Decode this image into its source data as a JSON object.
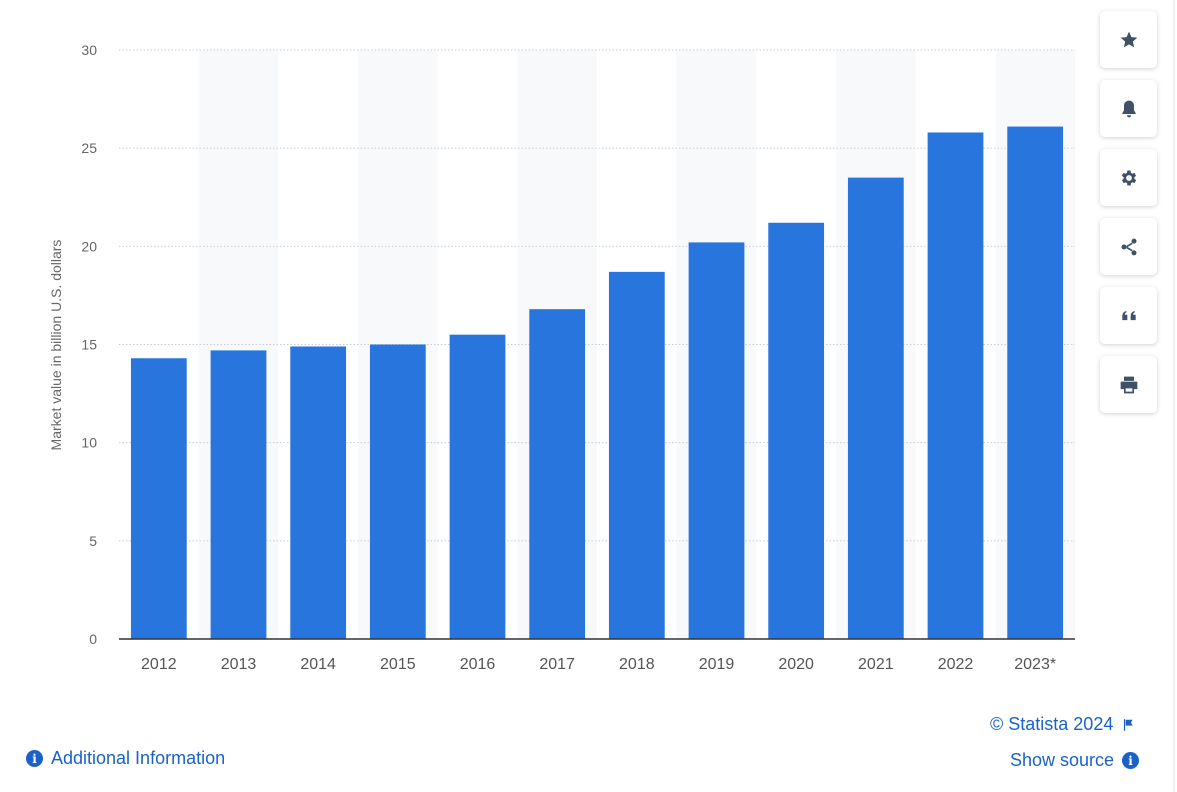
{
  "chart_data": {
    "type": "bar",
    "title": "",
    "xlabel": "",
    "ylabel": "Market value in billion U.S. dollars",
    "categories": [
      "2012",
      "2013",
      "2014",
      "2015",
      "2016",
      "2017",
      "2018",
      "2019",
      "2020",
      "2021",
      "2022",
      "2023*"
    ],
    "values": [
      14.3,
      14.7,
      14.9,
      15.0,
      15.5,
      16.8,
      18.7,
      20.2,
      21.2,
      23.5,
      25.8,
      26.1
    ],
    "ylim": [
      0,
      30
    ],
    "yticks": [
      "0",
      "5",
      "10",
      "15",
      "20",
      "25",
      "30"
    ],
    "grid": true,
    "legend": "none",
    "bar_color": "#2876dd"
  },
  "toolbar": {
    "buttons": [
      {
        "name": "favorite-button",
        "icon": "star-icon"
      },
      {
        "name": "notification-button",
        "icon": "bell-icon"
      },
      {
        "name": "settings-button",
        "icon": "gear-icon"
      },
      {
        "name": "share-button",
        "icon": "share-icon"
      },
      {
        "name": "cite-button",
        "icon": "quote-icon"
      },
      {
        "name": "print-button",
        "icon": "printer-icon"
      }
    ]
  },
  "footer": {
    "copyright": "© Statista 2024",
    "show_source": "Show source",
    "additional_info": "Additional Information"
  },
  "colors": {
    "accent": "#1a62c8",
    "bar": "#2876dd",
    "icon": "#3f5166"
  }
}
